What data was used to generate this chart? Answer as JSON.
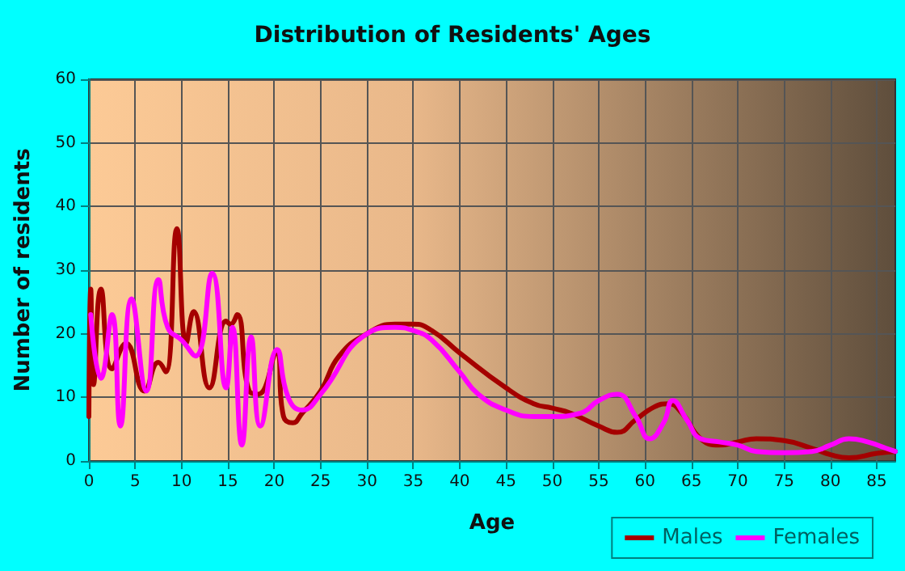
{
  "chart_data": {
    "type": "line",
    "title": "Distribution of Residents' Ages",
    "xlabel": "Age",
    "ylabel": "Number of residents",
    "series": [
      {
        "name": "Males",
        "color": "#a50000",
        "x": [
          0,
          0.2,
          0.5,
          1.3,
          2.5,
          4,
          6,
          7.5,
          8.3,
          9.5,
          10.5,
          11.3,
          13,
          14.8,
          15.3,
          16,
          17.3,
          18.3,
          20.2,
          21,
          22,
          23,
          25,
          27,
          30,
          33,
          35,
          37,
          40,
          45,
          48,
          50,
          52,
          55,
          57,
          59,
          61,
          62.5,
          64,
          66,
          68,
          70,
          72,
          75,
          78,
          80,
          82,
          85,
          87
        ],
        "values": [
          7,
          27,
          12,
          27,
          14.5,
          18.5,
          11,
          15.5,
          14,
          36.5,
          18.5,
          23.5,
          11.5,
          22,
          21.5,
          23,
          11,
          10.5,
          17,
          7,
          6,
          7.5,
          11,
          16.5,
          20,
          21.5,
          21.5,
          20.5,
          17,
          11.5,
          9,
          8.3,
          7.5,
          5.5,
          4.5,
          6.5,
          8.5,
          9,
          7.5,
          3.5,
          2.5,
          3,
          3.5,
          3.2,
          2,
          1,
          0.5,
          1.2,
          1.5
        ]
      },
      {
        "name": "Females",
        "color": "#ff00ff",
        "x": [
          0.2,
          1.3,
          2.5,
          3.4,
          4.6,
          6.2,
          7.5,
          8.5,
          10,
          11.5,
          13.3,
          14.8,
          15.5,
          16.5,
          17.5,
          18.5,
          20.3,
          21.5,
          23,
          25,
          30,
          33,
          35,
          37,
          40,
          42,
          45,
          48,
          50,
          53,
          55,
          57,
          59,
          60.5,
          62,
          63,
          64.5,
          66,
          68,
          70,
          72,
          75,
          78,
          80,
          82,
          84,
          86,
          87
        ],
        "values": [
          23,
          13,
          23,
          5.5,
          25.5,
          11,
          28.5,
          21,
          19,
          16.5,
          29.5,
          11.5,
          21,
          2.5,
          19.5,
          5.5,
          17.5,
          10,
          8,
          10.5,
          20,
          21,
          20.5,
          19,
          14,
          10.5,
          8,
          7,
          7,
          7.5,
          9.5,
          10.5,
          7,
          3.5,
          6,
          9.5,
          6.5,
          3.5,
          3,
          2.5,
          1.5,
          1.3,
          1.5,
          2.5,
          3.5,
          3,
          2,
          1.5
        ]
      }
    ],
    "xlim": [
      0,
      87
    ],
    "xticks": [
      0,
      5,
      10,
      15,
      20,
      25,
      30,
      35,
      40,
      45,
      50,
      55,
      60,
      65,
      70,
      75,
      80,
      85
    ],
    "ylim": [
      0,
      60
    ],
    "yticks": [
      0,
      10,
      20,
      30,
      40,
      50,
      60
    ],
    "grid": true,
    "legend": "bottom right",
    "marker": "none",
    "line_style": "solid"
  }
}
